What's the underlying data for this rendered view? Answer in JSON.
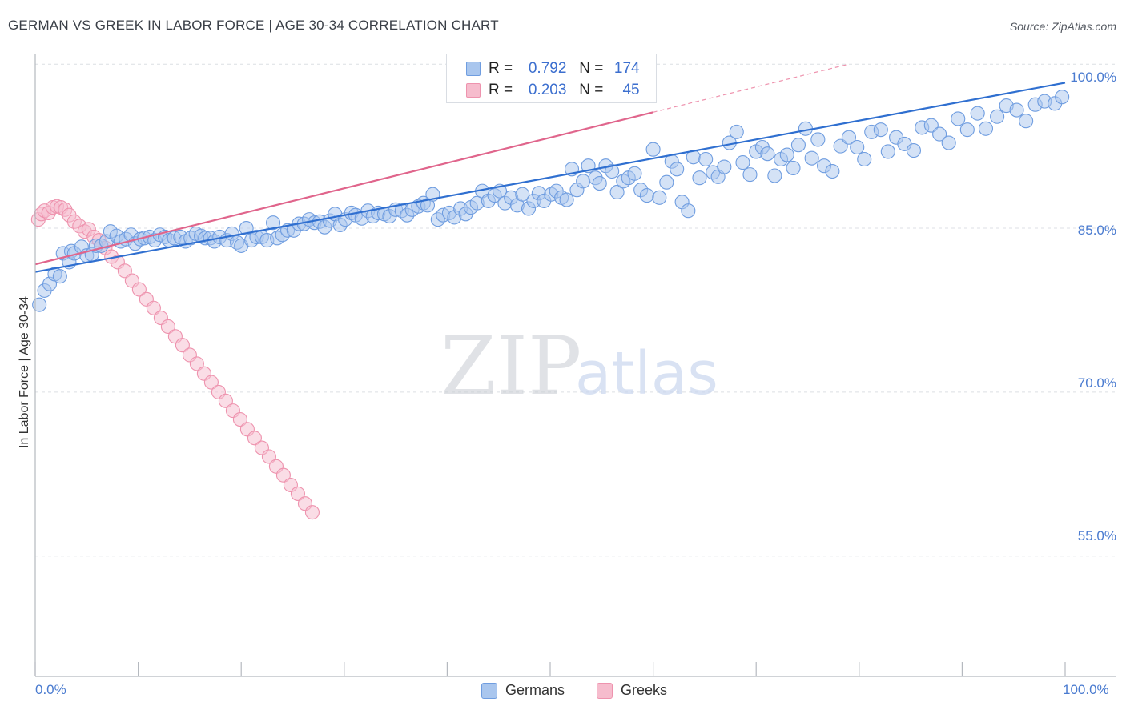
{
  "title": "GERMAN VS GREEK IN LABOR FORCE | AGE 30-34 CORRELATION CHART",
  "source": "Source: ZipAtlas.com",
  "watermark": {
    "zip": "ZIP",
    "atlas": "atlas"
  },
  "colors": {
    "german_fill": "#a9c6ee",
    "german_stroke": "#6f9de0",
    "german_line": "#2f6fd0",
    "greek_fill": "#f6bccd",
    "greek_stroke": "#ee93ae",
    "greek_line": "#e0658c",
    "tick_text": "#4a7bd0",
    "grid": "#dcdfe4"
  },
  "stats": {
    "german": {
      "r_label": "R =",
      "r_value": "0.792",
      "n_label": "N =",
      "n_value": "174"
    },
    "greek": {
      "r_label": "R =",
      "r_value": "0.203",
      "n_label": "N =",
      "n_value": "45"
    }
  },
  "chart_data": {
    "type": "scatter",
    "title": "GERMAN VS GREEK IN LABOR FORCE | AGE 30-34 CORRELATION CHART",
    "xlabel": "",
    "ylabel": "In Labor Force | Age 30-34",
    "xlim": [
      0,
      100
    ],
    "ylim": [
      44,
      100.6
    ],
    "x_tick_labels": [
      "0.0%",
      "100.0%"
    ],
    "y_ticks": [
      {
        "value": 100,
        "label": "100.0%"
      },
      {
        "value": 85,
        "label": "85.0%"
      },
      {
        "value": 70,
        "label": "70.0%"
      },
      {
        "value": 55,
        "label": "55.0%"
      }
    ],
    "legend": [
      "Germans",
      "Greeks"
    ],
    "series": [
      {
        "name": "Germans",
        "trend": {
          "x": [
            0,
            100
          ],
          "y": [
            81.0,
            98.3
          ]
        },
        "points": [
          [
            0.4,
            78.0
          ],
          [
            0.9,
            79.3
          ],
          [
            1.4,
            79.9
          ],
          [
            1.9,
            80.8
          ],
          [
            2.4,
            80.6
          ],
          [
            2.7,
            82.7
          ],
          [
            3.3,
            81.9
          ],
          [
            3.5,
            82.9
          ],
          [
            3.8,
            82.7
          ],
          [
            4.5,
            83.3
          ],
          [
            5.0,
            82.5
          ],
          [
            5.5,
            82.6
          ],
          [
            5.9,
            83.4
          ],
          [
            6.4,
            83.4
          ],
          [
            6.9,
            83.8
          ],
          [
            7.3,
            84.7
          ],
          [
            7.9,
            84.3
          ],
          [
            8.3,
            83.8
          ],
          [
            8.8,
            84.0
          ],
          [
            9.3,
            84.4
          ],
          [
            9.7,
            83.6
          ],
          [
            10.2,
            84.0
          ],
          [
            10.6,
            84.1
          ],
          [
            11.1,
            84.2
          ],
          [
            11.6,
            83.9
          ],
          [
            12.1,
            84.4
          ],
          [
            12.6,
            84.2
          ],
          [
            13.0,
            83.9
          ],
          [
            13.5,
            84.1
          ],
          [
            14.1,
            84.2
          ],
          [
            14.6,
            83.8
          ],
          [
            15.1,
            84.1
          ],
          [
            15.6,
            84.5
          ],
          [
            16.1,
            84.3
          ],
          [
            16.5,
            84.1
          ],
          [
            17.0,
            84.1
          ],
          [
            17.4,
            83.8
          ],
          [
            17.9,
            84.2
          ],
          [
            18.6,
            83.9
          ],
          [
            19.1,
            84.5
          ],
          [
            19.6,
            83.7
          ],
          [
            20.0,
            83.4
          ],
          [
            20.5,
            85.0
          ],
          [
            21.0,
            83.9
          ],
          [
            21.5,
            84.2
          ],
          [
            22.0,
            84.2
          ],
          [
            22.5,
            83.9
          ],
          [
            23.1,
            85.5
          ],
          [
            23.5,
            84.1
          ],
          [
            24.0,
            84.4
          ],
          [
            24.5,
            84.8
          ],
          [
            25.1,
            84.8
          ],
          [
            25.6,
            85.4
          ],
          [
            26.1,
            85.4
          ],
          [
            26.6,
            85.8
          ],
          [
            27.1,
            85.5
          ],
          [
            27.6,
            85.6
          ],
          [
            28.1,
            85.1
          ],
          [
            28.6,
            85.7
          ],
          [
            29.1,
            86.3
          ],
          [
            29.6,
            85.3
          ],
          [
            30.1,
            85.8
          ],
          [
            30.7,
            86.4
          ],
          [
            31.1,
            86.2
          ],
          [
            31.7,
            85.9
          ],
          [
            32.3,
            86.6
          ],
          [
            32.8,
            86.1
          ],
          [
            33.3,
            86.4
          ],
          [
            33.9,
            86.3
          ],
          [
            34.4,
            86.1
          ],
          [
            35.0,
            86.7
          ],
          [
            35.6,
            86.6
          ],
          [
            36.1,
            86.2
          ],
          [
            36.6,
            86.7
          ],
          [
            37.2,
            87.0
          ],
          [
            37.7,
            87.3
          ],
          [
            38.1,
            87.1
          ],
          [
            38.6,
            88.1
          ],
          [
            39.1,
            85.8
          ],
          [
            39.6,
            86.2
          ],
          [
            40.2,
            86.4
          ],
          [
            40.7,
            86.0
          ],
          [
            41.3,
            86.8
          ],
          [
            41.8,
            86.3
          ],
          [
            42.3,
            86.9
          ],
          [
            42.9,
            87.3
          ],
          [
            43.4,
            88.4
          ],
          [
            44.0,
            87.5
          ],
          [
            44.6,
            88.0
          ],
          [
            45.1,
            88.4
          ],
          [
            45.6,
            87.3
          ],
          [
            46.2,
            87.8
          ],
          [
            46.8,
            87.1
          ],
          [
            47.3,
            88.1
          ],
          [
            47.9,
            86.8
          ],
          [
            48.4,
            87.5
          ],
          [
            48.9,
            88.2
          ],
          [
            49.4,
            87.5
          ],
          [
            50.1,
            88.1
          ],
          [
            50.6,
            88.4
          ],
          [
            51.1,
            87.8
          ],
          [
            51.6,
            87.6
          ],
          [
            52.1,
            90.4
          ],
          [
            52.6,
            88.5
          ],
          [
            53.2,
            89.3
          ],
          [
            53.7,
            90.7
          ],
          [
            54.4,
            89.6
          ],
          [
            54.8,
            89.1
          ],
          [
            55.4,
            90.7
          ],
          [
            56.0,
            90.2
          ],
          [
            56.5,
            88.3
          ],
          [
            57.1,
            89.3
          ],
          [
            57.6,
            89.6
          ],
          [
            58.2,
            90.0
          ],
          [
            58.8,
            88.5
          ],
          [
            59.4,
            88.0
          ],
          [
            60.0,
            92.2
          ],
          [
            60.6,
            87.8
          ],
          [
            61.3,
            89.2
          ],
          [
            61.8,
            91.1
          ],
          [
            62.3,
            90.4
          ],
          [
            62.8,
            87.4
          ],
          [
            63.4,
            86.6
          ],
          [
            63.9,
            91.5
          ],
          [
            64.5,
            89.6
          ],
          [
            65.1,
            91.3
          ],
          [
            65.8,
            90.1
          ],
          [
            66.3,
            89.7
          ],
          [
            66.9,
            90.6
          ],
          [
            67.4,
            92.8
          ],
          [
            68.1,
            93.8
          ],
          [
            68.7,
            91.0
          ],
          [
            69.4,
            89.9
          ],
          [
            70.0,
            92.0
          ],
          [
            70.6,
            92.4
          ],
          [
            71.1,
            91.8
          ],
          [
            71.8,
            89.8
          ],
          [
            72.4,
            91.3
          ],
          [
            73.0,
            91.7
          ],
          [
            73.6,
            90.5
          ],
          [
            74.1,
            92.6
          ],
          [
            74.8,
            94.1
          ],
          [
            75.4,
            91.4
          ],
          [
            76.0,
            93.1
          ],
          [
            76.6,
            90.7
          ],
          [
            77.4,
            90.2
          ],
          [
            78.2,
            92.5
          ],
          [
            79.0,
            93.3
          ],
          [
            79.8,
            92.4
          ],
          [
            80.5,
            91.3
          ],
          [
            81.2,
            93.8
          ],
          [
            82.1,
            94.0
          ],
          [
            82.8,
            92.0
          ],
          [
            83.6,
            93.3
          ],
          [
            84.4,
            92.7
          ],
          [
            85.3,
            92.1
          ],
          [
            86.1,
            94.2
          ],
          [
            87.0,
            94.4
          ],
          [
            87.8,
            93.6
          ],
          [
            88.7,
            92.8
          ],
          [
            89.6,
            95.0
          ],
          [
            90.5,
            94.0
          ],
          [
            91.5,
            95.5
          ],
          [
            92.3,
            94.1
          ],
          [
            93.4,
            95.2
          ],
          [
            94.3,
            96.2
          ],
          [
            95.3,
            95.8
          ],
          [
            96.2,
            94.8
          ],
          [
            97.1,
            96.3
          ],
          [
            98.0,
            96.6
          ],
          [
            99.0,
            96.4
          ],
          [
            99.7,
            97.0
          ]
        ]
      },
      {
        "name": "Greeks",
        "trend": {
          "x": [
            0,
            60
          ],
          "y": [
            81.7,
            95.6
          ]
        },
        "points": [
          [
            0.3,
            85.8
          ],
          [
            0.6,
            86.3
          ],
          [
            0.9,
            86.6
          ],
          [
            1.3,
            86.4
          ],
          [
            1.7,
            86.9
          ],
          [
            2.1,
            87.0
          ],
          [
            2.5,
            86.9
          ],
          [
            2.9,
            86.7
          ],
          [
            3.3,
            86.2
          ],
          [
            3.8,
            85.6
          ],
          [
            4.3,
            85.2
          ],
          [
            4.8,
            84.7
          ],
          [
            5.2,
            84.9
          ],
          [
            5.7,
            84.2
          ],
          [
            6.2,
            83.9
          ],
          [
            6.8,
            83.2
          ],
          [
            7.4,
            82.4
          ],
          [
            8.0,
            81.9
          ],
          [
            8.7,
            81.1
          ],
          [
            9.4,
            80.2
          ],
          [
            10.1,
            79.4
          ],
          [
            10.8,
            78.5
          ],
          [
            11.5,
            77.7
          ],
          [
            12.2,
            76.8
          ],
          [
            12.9,
            76.0
          ],
          [
            13.6,
            75.1
          ],
          [
            14.3,
            74.3
          ],
          [
            15.0,
            73.4
          ],
          [
            15.7,
            72.6
          ],
          [
            16.4,
            71.7
          ],
          [
            17.1,
            70.9
          ],
          [
            17.8,
            70.0
          ],
          [
            18.5,
            69.2
          ],
          [
            19.2,
            68.3
          ],
          [
            19.9,
            67.5
          ],
          [
            20.6,
            66.6
          ],
          [
            21.3,
            65.8
          ],
          [
            22.0,
            64.9
          ],
          [
            22.7,
            64.1
          ],
          [
            23.4,
            63.2
          ],
          [
            24.1,
            62.4
          ],
          [
            24.8,
            61.5
          ],
          [
            25.5,
            60.7
          ],
          [
            26.2,
            59.8
          ],
          [
            26.9,
            59.0
          ]
        ]
      }
    ]
  }
}
